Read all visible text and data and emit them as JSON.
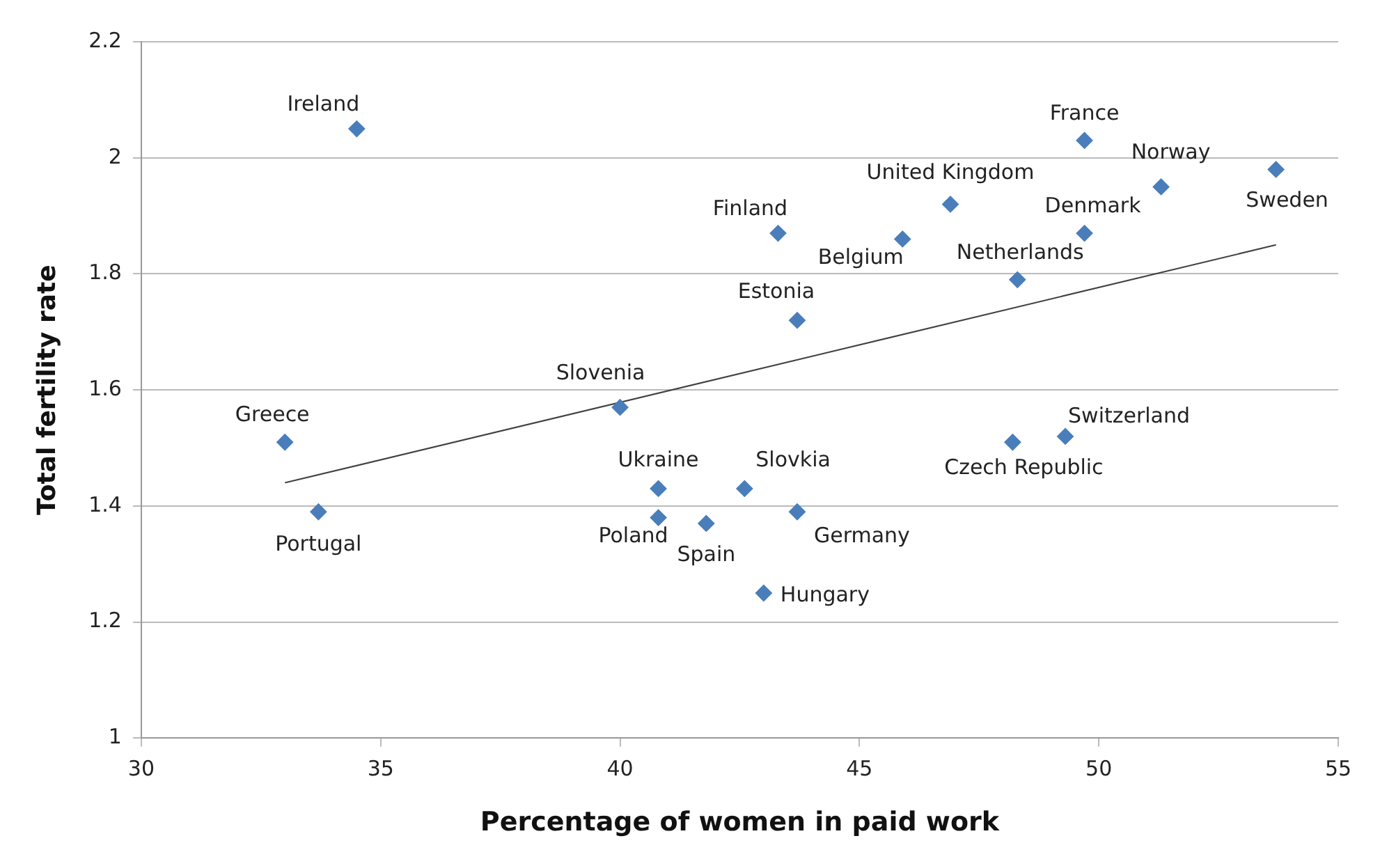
{
  "chart_data": {
    "type": "scatter",
    "xlabel": "Percentage of women in paid work",
    "ylabel": "Total fertility rate",
    "xlim": [
      30,
      55
    ],
    "xticks": [
      30,
      35,
      40,
      45,
      50,
      55
    ],
    "ylim": [
      1,
      2.2
    ],
    "yticks": [
      1,
      1.2,
      1.4,
      1.6,
      1.8,
      2,
      2.2
    ],
    "grid": "y",
    "marker": "diamond",
    "legend": false,
    "series": [
      {
        "color": "#4a7ebb",
        "x": [
          34.5,
          33.0,
          33.7,
          40.0,
          40.8,
          40.8,
          41.8,
          42.6,
          43.7,
          43.0,
          48.2,
          49.3,
          43.3,
          45.9,
          46.9,
          43.7,
          48.3,
          49.7,
          49.7,
          51.3,
          53.7
        ],
        "values": [
          2.05,
          1.51,
          1.39,
          1.57,
          1.43,
          1.38,
          1.37,
          1.43,
          1.39,
          1.25,
          1.51,
          1.52,
          1.87,
          1.86,
          1.92,
          1.72,
          1.79,
          2.03,
          1.87,
          1.95,
          1.98
        ]
      },
      {
        "type": "line",
        "color": "#404040",
        "marker": "none",
        "x": [
          33.0,
          53.7
        ],
        "values": [
          1.44,
          1.85
        ]
      }
    ],
    "annotations": [
      {
        "text": "Ireland",
        "x": 34.5,
        "y": 2.05
      },
      {
        "text": "Greece",
        "x": 33.0,
        "y": 1.51
      },
      {
        "text": "Portugal",
        "x": 33.7,
        "y": 1.39
      },
      {
        "text": "Slovenia",
        "x": 40.0,
        "y": 1.57
      },
      {
        "text": "Ukraine",
        "x": 40.8,
        "y": 1.43
      },
      {
        "text": "Poland",
        "x": 40.8,
        "y": 1.38
      },
      {
        "text": "Spain",
        "x": 41.8,
        "y": 1.37
      },
      {
        "text": "Slovkia",
        "x": 42.6,
        "y": 1.43
      },
      {
        "text": "Germany",
        "x": 43.7,
        "y": 1.39
      },
      {
        "text": "Hungary",
        "x": 43.0,
        "y": 1.25
      },
      {
        "text": "Czech Republic",
        "x": 48.2,
        "y": 1.51
      },
      {
        "text": "Switzerland",
        "x": 49.3,
        "y": 1.52
      },
      {
        "text": "Finland",
        "x": 43.3,
        "y": 1.87
      },
      {
        "text": "Belgium",
        "x": 45.9,
        "y": 1.86
      },
      {
        "text": "United Kingdom",
        "x": 46.9,
        "y": 1.92
      },
      {
        "text": "Estonia",
        "x": 43.7,
        "y": 1.72
      },
      {
        "text": "Netherlands",
        "x": 48.3,
        "y": 1.79
      },
      {
        "text": "France",
        "x": 49.7,
        "y": 2.03
      },
      {
        "text": "Denmark",
        "x": 49.7,
        "y": 1.87
      },
      {
        "text": "Norway",
        "x": 51.3,
        "y": 1.95
      },
      {
        "text": "Sweden",
        "x": 53.7,
        "y": 1.98
      }
    ]
  }
}
